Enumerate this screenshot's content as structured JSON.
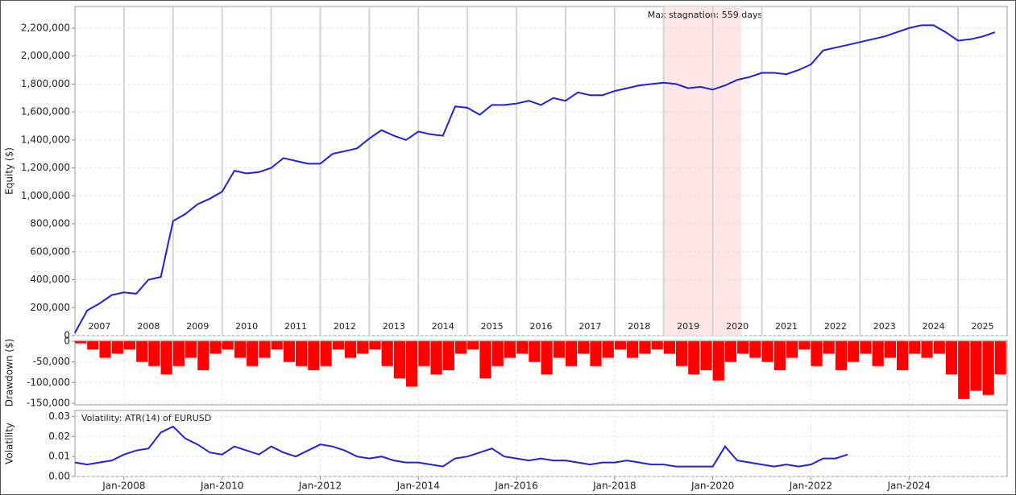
{
  "chart_data": [
    {
      "type": "line",
      "ylabel": "Equity ($)",
      "color": "#1f1fe6",
      "annotation": {
        "label": "Max stagnation: 559 days",
        "start": "2019-01",
        "end": "2020-08"
      },
      "year_labels": [
        "2007",
        "2008",
        "2009",
        "2010",
        "2011",
        "2012",
        "2013",
        "2014",
        "2015",
        "2016",
        "2017",
        "2018",
        "2019",
        "2020",
        "2021",
        "2022",
        "2023",
        "2024",
        "2025"
      ],
      "xlim": [
        "2007-01",
        "2026-01"
      ],
      "ylim": [
        0,
        2355000
      ],
      "yticks": [
        0,
        {
          "value": 200000,
          "label": "200,000"
        },
        {
          "value": 400000,
          "label": "400,000"
        },
        {
          "value": 600000,
          "label": "600,000"
        },
        {
          "value": 800000,
          "label": "800,000"
        },
        {
          "value": 1000000,
          "label": "1,000,000"
        },
        {
          "value": 1200000,
          "label": "1,200,000"
        },
        {
          "value": 1400000,
          "label": "1,400,000"
        },
        {
          "value": 1600000,
          "label": "1,600,000"
        },
        {
          "value": 1800000,
          "label": "1,800,000"
        },
        {
          "value": 2000000,
          "label": "2,000,000"
        },
        {
          "value": 2200000,
          "label": "2,200,000"
        }
      ],
      "x": [
        "2007-01",
        "2007-04",
        "2007-07",
        "2007-10",
        "2008-01",
        "2008-04",
        "2008-07",
        "2008-10",
        "2009-01",
        "2009-04",
        "2009-07",
        "2009-10",
        "2010-01",
        "2010-04",
        "2010-07",
        "2010-10",
        "2011-01",
        "2011-04",
        "2011-07",
        "2011-10",
        "2012-01",
        "2012-04",
        "2012-07",
        "2012-10",
        "2013-01",
        "2013-04",
        "2013-07",
        "2013-10",
        "2014-01",
        "2014-04",
        "2014-07",
        "2014-10",
        "2015-01",
        "2015-04",
        "2015-07",
        "2015-10",
        "2016-01",
        "2016-04",
        "2016-07",
        "2016-10",
        "2017-01",
        "2017-04",
        "2017-07",
        "2017-10",
        "2018-01",
        "2018-04",
        "2018-07",
        "2018-10",
        "2019-01",
        "2019-04",
        "2019-07",
        "2019-10",
        "2020-01",
        "2020-04",
        "2020-07",
        "2020-10",
        "2021-01",
        "2021-04",
        "2021-07",
        "2021-10",
        "2022-01",
        "2022-04",
        "2022-07",
        "2022-10",
        "2023-01",
        "2023-04",
        "2023-07",
        "2023-10",
        "2024-01",
        "2024-04",
        "2024-07",
        "2024-10",
        "2025-01",
        "2025-04",
        "2025-07",
        "2025-10"
      ],
      "values": [
        20000,
        180000,
        230000,
        290000,
        310000,
        300000,
        400000,
        420000,
        820000,
        870000,
        940000,
        980000,
        1030000,
        1180000,
        1160000,
        1170000,
        1200000,
        1270000,
        1250000,
        1230000,
        1230000,
        1300000,
        1320000,
        1340000,
        1410000,
        1470000,
        1430000,
        1400000,
        1460000,
        1440000,
        1430000,
        1640000,
        1630000,
        1580000,
        1650000,
        1650000,
        1660000,
        1680000,
        1650000,
        1700000,
        1680000,
        1740000,
        1720000,
        1720000,
        1750000,
        1770000,
        1790000,
        1800000,
        1810000,
        1800000,
        1770000,
        1780000,
        1760000,
        1790000,
        1830000,
        1850000,
        1880000,
        1880000,
        1870000,
        1900000,
        1940000,
        2040000,
        2060000,
        2080000,
        2100000,
        2120000,
        2140000,
        2170000,
        2200000,
        2220000,
        2220000,
        2170000,
        2110000,
        2120000,
        2140000,
        2170000
      ]
    },
    {
      "type": "bar",
      "ylabel": "Drawdown ($)",
      "color": "#ff0000",
      "xlim": [
        "2007-01",
        "2026-01"
      ],
      "ylim": [
        -154000,
        2000
      ],
      "yticks": [
        0,
        {
          "value": -50000,
          "label": "-50,000"
        },
        {
          "value": -100000,
          "label": "-100,000"
        },
        {
          "value": -150000,
          "label": "-150,000"
        }
      ],
      "x": [
        "2007-01",
        "2007-04",
        "2007-07",
        "2007-10",
        "2008-01",
        "2008-04",
        "2008-07",
        "2008-10",
        "2009-01",
        "2009-04",
        "2009-07",
        "2009-10",
        "2010-01",
        "2010-04",
        "2010-07",
        "2010-10",
        "2011-01",
        "2011-04",
        "2011-07",
        "2011-10",
        "2012-01",
        "2012-04",
        "2012-07",
        "2012-10",
        "2013-01",
        "2013-04",
        "2013-07",
        "2013-10",
        "2014-01",
        "2014-04",
        "2014-07",
        "2014-10",
        "2015-01",
        "2015-04",
        "2015-07",
        "2015-10",
        "2016-01",
        "2016-04",
        "2016-07",
        "2016-10",
        "2017-01",
        "2017-04",
        "2017-07",
        "2017-10",
        "2018-01",
        "2018-04",
        "2018-07",
        "2018-10",
        "2019-01",
        "2019-04",
        "2019-07",
        "2019-10",
        "2020-01",
        "2020-04",
        "2020-07",
        "2020-10",
        "2021-01",
        "2021-04",
        "2021-07",
        "2021-10",
        "2022-01",
        "2022-04",
        "2022-07",
        "2022-10",
        "2023-01",
        "2023-04",
        "2023-07",
        "2023-10",
        "2024-01",
        "2024-04",
        "2024-07",
        "2024-10",
        "2025-01",
        "2025-04",
        "2025-07",
        "2025-10"
      ],
      "values": [
        -5000,
        -20000,
        -40000,
        -30000,
        -20000,
        -50000,
        -60000,
        -80000,
        -60000,
        -40000,
        -70000,
        -30000,
        -20000,
        -40000,
        -60000,
        -40000,
        -20000,
        -50000,
        -60000,
        -70000,
        -60000,
        -20000,
        -40000,
        -30000,
        -20000,
        -60000,
        -90000,
        -110000,
        -60000,
        -80000,
        -70000,
        -30000,
        -20000,
        -90000,
        -60000,
        -40000,
        -30000,
        -50000,
        -80000,
        -40000,
        -60000,
        -30000,
        -60000,
        -40000,
        -20000,
        -40000,
        -30000,
        -20000,
        -30000,
        -60000,
        -80000,
        -70000,
        -95000,
        -50000,
        -30000,
        -40000,
        -50000,
        -70000,
        -40000,
        -20000,
        -60000,
        -30000,
        -70000,
        -50000,
        -30000,
        -60000,
        -40000,
        -70000,
        -30000,
        -40000,
        -30000,
        -80000,
        -140000,
        -120000,
        -130000,
        -80000
      ]
    },
    {
      "type": "line",
      "ylabel": "Volatility",
      "title": "Volatility: ATR(14) of EURUSD",
      "color": "#1f1fe6",
      "xlim": [
        "2007-01",
        "2026-01"
      ],
      "ylim": [
        0,
        0.033
      ],
      "yticks": [
        {
          "value": 0,
          "label": "0.00"
        },
        0.01,
        0.02,
        0.03
      ],
      "xticks": [
        {
          "value": "2008-01",
          "label": "Jan-2008"
        },
        {
          "value": "2010-01",
          "label": "Jan-2010"
        },
        {
          "value": "2012-01",
          "label": "Jan-2012"
        },
        {
          "value": "2014-01",
          "label": "Jan-2014"
        },
        {
          "value": "2016-01",
          "label": "Jan-2016"
        },
        {
          "value": "2018-01",
          "label": "Jan-2018"
        },
        {
          "value": "2020-01",
          "label": "Jan-2020"
        },
        {
          "value": "2022-01",
          "label": "Jan-2022"
        },
        {
          "value": "2024-01",
          "label": "Jan-2024"
        }
      ],
      "x": [
        "2007-01",
        "2007-04",
        "2007-07",
        "2007-10",
        "2008-01",
        "2008-04",
        "2008-07",
        "2008-10",
        "2009-01",
        "2009-04",
        "2009-07",
        "2009-10",
        "2010-01",
        "2010-04",
        "2010-07",
        "2010-10",
        "2011-01",
        "2011-04",
        "2011-07",
        "2011-10",
        "2012-01",
        "2012-04",
        "2012-07",
        "2012-10",
        "2013-01",
        "2013-04",
        "2013-07",
        "2013-10",
        "2014-01",
        "2014-04",
        "2014-07",
        "2014-10",
        "2015-01",
        "2015-04",
        "2015-07",
        "2015-10",
        "2016-01",
        "2016-04",
        "2016-07",
        "2016-10",
        "2017-01",
        "2017-04",
        "2017-07",
        "2017-10",
        "2018-01",
        "2018-04",
        "2018-07",
        "2018-10",
        "2019-01",
        "2019-04",
        "2019-07",
        "2019-10",
        "2020-01",
        "2020-04",
        "2020-07",
        "2020-10",
        "2021-01",
        "2021-04",
        "2021-07",
        "2021-10",
        "2022-01",
        "2022-04",
        "2022-07",
        "2022-10",
        "2023-01",
        "2023-04",
        "2023-07",
        "2023-10",
        "2024-01",
        "2024-04",
        "2024-07",
        "2024-10",
        "2025-01",
        "2025-04",
        "2025-07",
        "2025-10"
      ],
      "values": [
        0.007,
        0.006,
        0.007,
        0.008,
        0.011,
        0.013,
        0.014,
        0.022,
        0.025,
        0.019,
        0.016,
        0.012,
        0.011,
        0.015,
        0.013,
        0.011,
        0.015,
        0.012,
        0.01,
        0.013,
        0.016,
        0.015,
        0.013,
        0.01,
        0.009,
        0.01,
        0.008,
        0.007,
        0.007,
        0.006,
        0.005,
        0.009,
        0.01,
        0.012,
        0.014,
        0.01,
        0.009,
        0.008,
        0.009,
        0.008,
        0.008,
        0.007,
        0.006,
        0.007,
        0.007,
        0.008,
        0.007,
        0.006,
        0.006,
        0.005,
        0.005,
        0.005,
        0.005,
        0.015,
        0.008,
        0.007,
        0.006,
        0.005,
        0.006,
        0.005,
        0.006,
        0.009,
        0.009,
        0.011,
        null,
        null,
        null,
        null,
        null,
        null,
        null,
        null,
        null,
        null,
        null,
        null
      ]
    }
  ]
}
